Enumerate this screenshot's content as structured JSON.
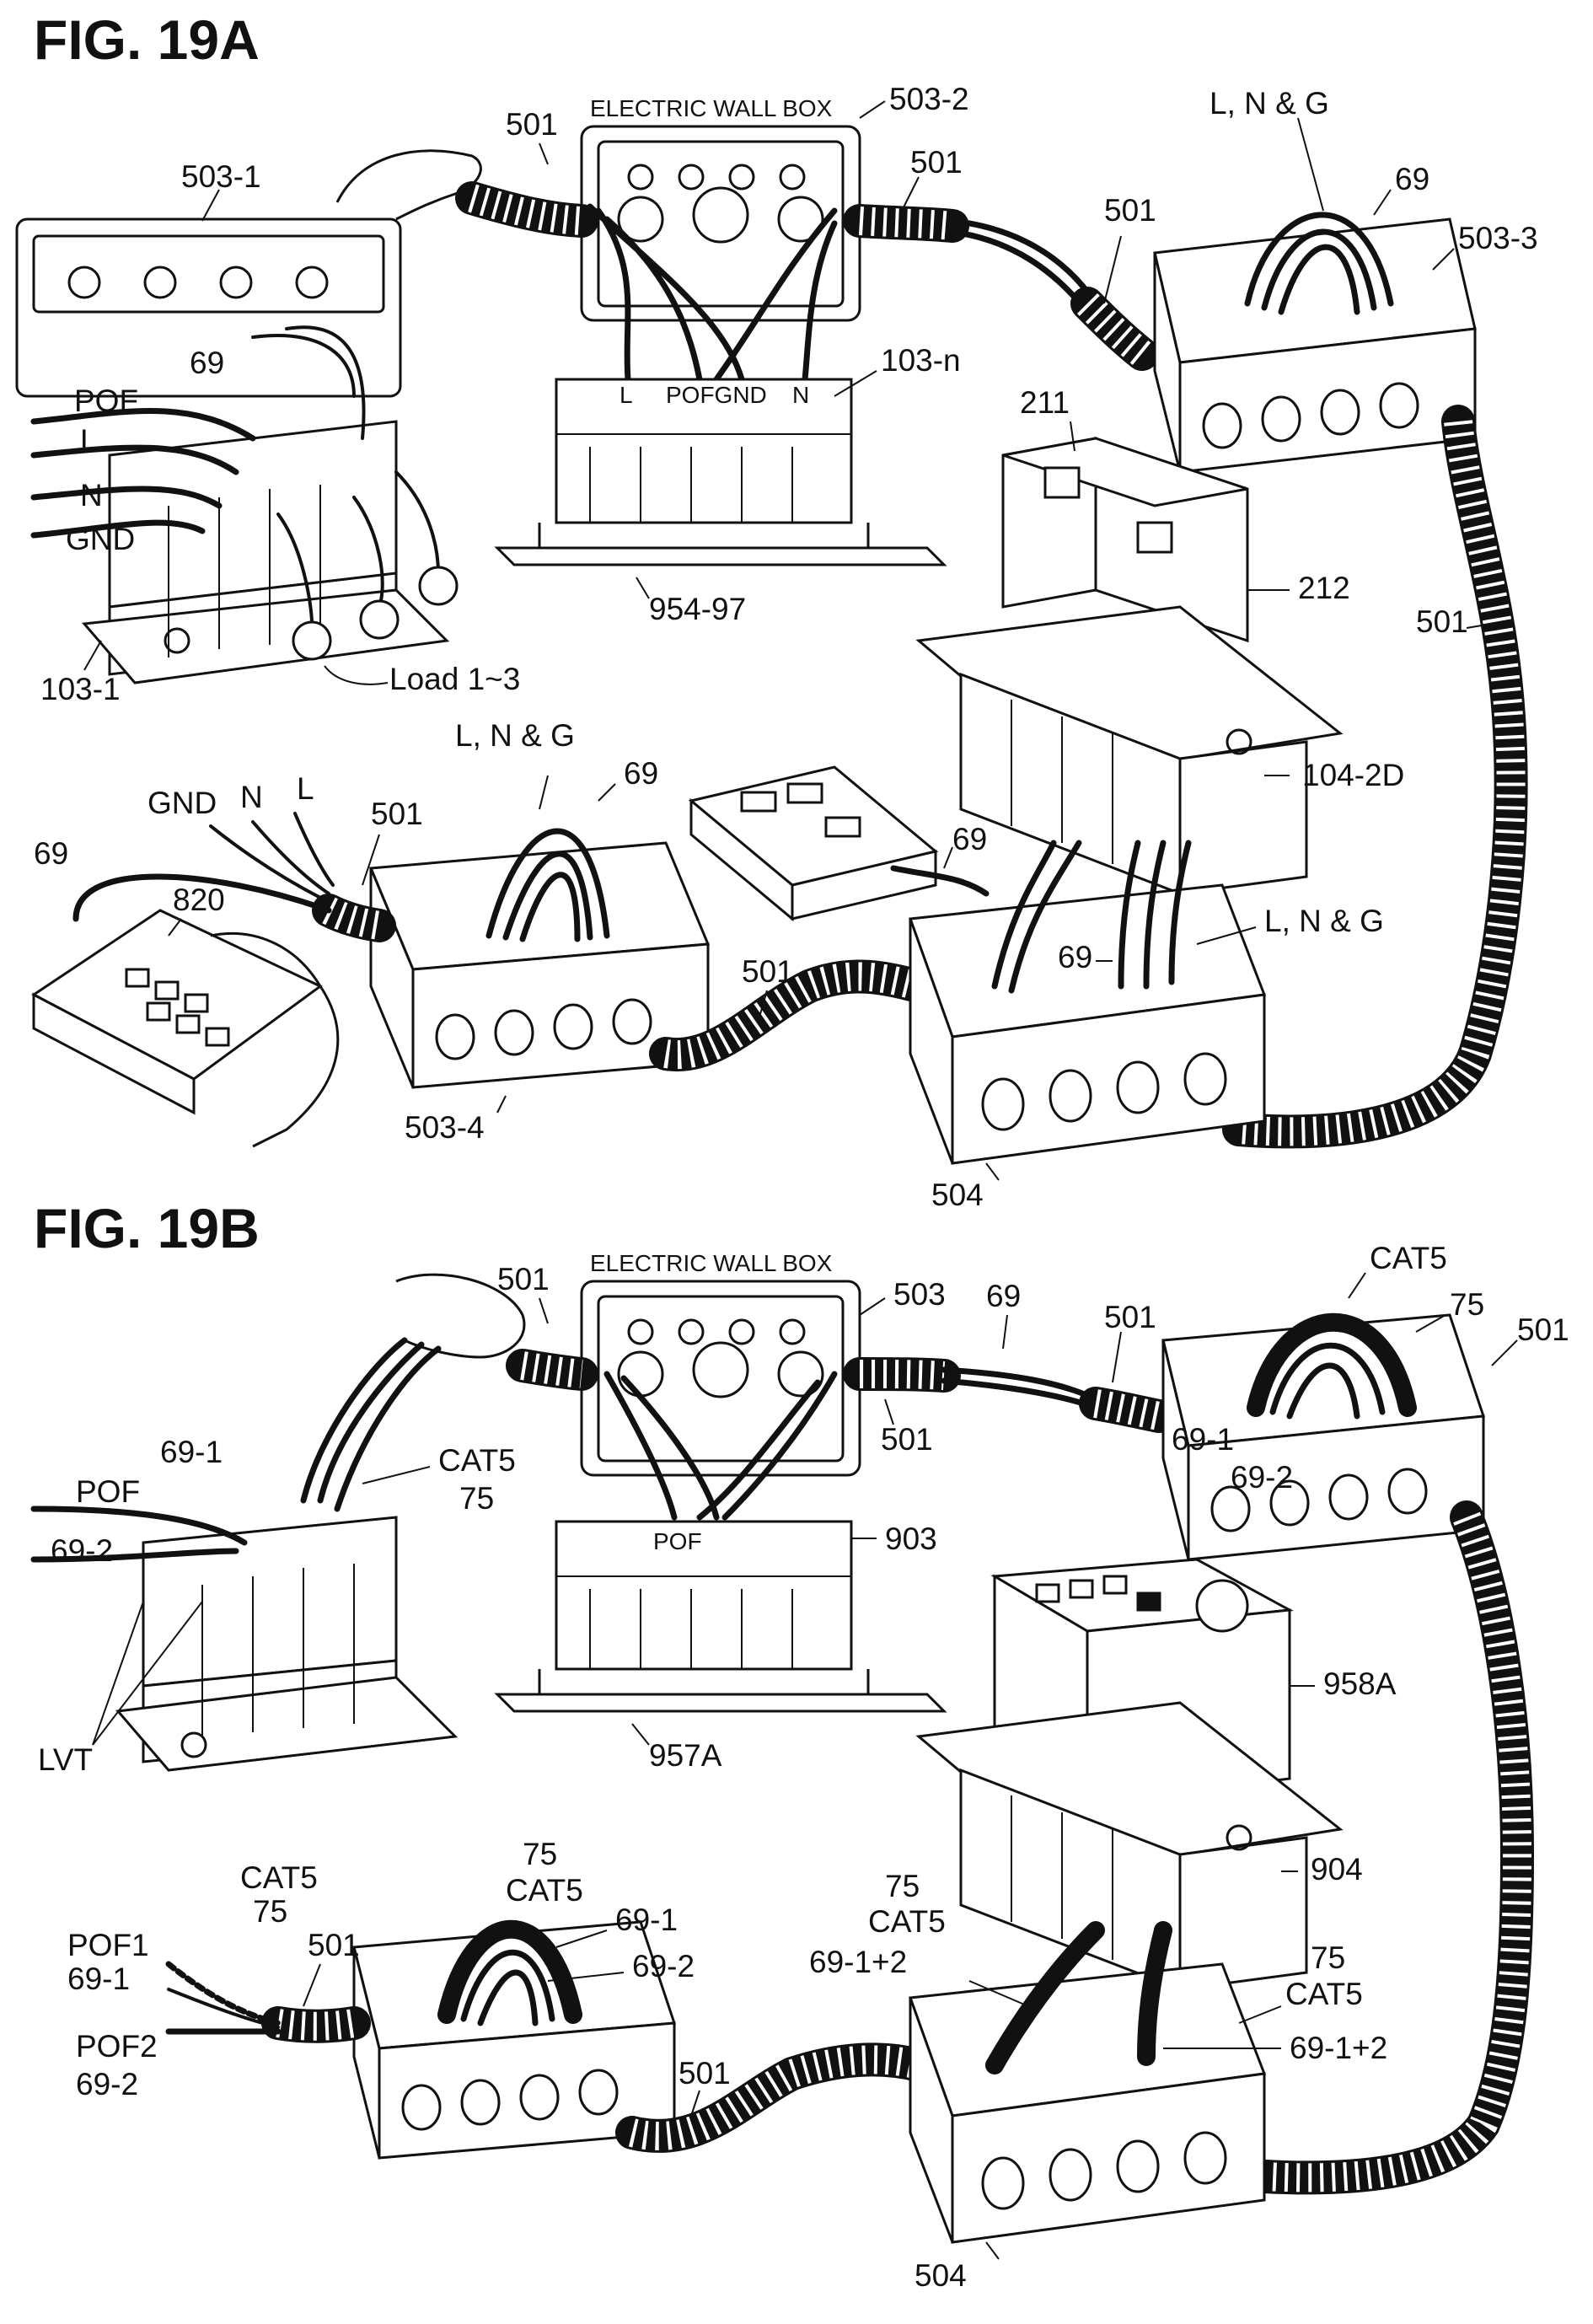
{
  "figures": [
    {
      "title": "FIG. 19A",
      "wall_box_caption": "ELECTRIC WALL BOX",
      "labels": {
        "l501_a": "501",
        "l503_2": "503-2",
        "l501_b": "501",
        "l503_1": "503-1",
        "lLNG_top": "L, N & G",
        "l69_top": "69",
        "l501_c": "501",
        "l503_3": "503-3",
        "l69_left": "69",
        "lPOF": "POF",
        "lL": "L",
        "lN": "N",
        "lGND": "GND",
        "l103_n": "103-n",
        "term_L": "L",
        "term_POFGND": "POFGND",
        "term_N": "N",
        "l211": "211",
        "l212": "212",
        "l501_d": "501",
        "l103_1": "103-1",
        "lLoad": "Load 1~3",
        "l954_97": "954-97",
        "lLNG_mid": "L, N & G",
        "l69_mid": "69",
        "l104_2D": "104-2D",
        "lGND2": "GND",
        "lN2": "N",
        "lL2": "L",
        "l501_e": "501",
        "l69_remote": "69",
        "l820": "820",
        "l69_right": "69",
        "l69_box": "69",
        "lLNG_right": "L, N & G",
        "l501_f": "501",
        "l503_4": "503-4",
        "l504": "504"
      }
    },
    {
      "title": "FIG. 19B",
      "wall_box_caption": "ELECTRIC WALL BOX",
      "labels": {
        "l501_a": "501",
        "l503": "503",
        "l69": "69",
        "l501_b": "501",
        "lCAT5_top": "CAT5",
        "l75_top": "75",
        "l69_1_top": "69-1",
        "l69_2_top": "69-2",
        "l501_c": "501",
        "l501_right": "501",
        "lCAT5_mid": "CAT5",
        "l75_mid": "75",
        "l69_1_left": "69-1",
        "lPOF_left": "POF",
        "l69_2_left": "69-2",
        "lPOF_term": "POF",
        "l903": "903",
        "l958A": "958A",
        "lLVT": "LVT",
        "l957A": "957A",
        "l904": "904",
        "lCAT5_l": "CAT5",
        "l75_l": "75",
        "lPOF1": "POF1",
        "l69_1_l": "69-1",
        "l501_l": "501",
        "lPOF2": "POF2",
        "l69_2_l": "69-2",
        "l75_box": "75",
        "lCAT5_box": "CAT5",
        "l69_1_box": "69-1",
        "l69_2_box": "69-2",
        "l75_r1": "75",
        "lCAT5_r1": "CAT5",
        "l69_12_a": "69-1+2",
        "l75_r2": "75",
        "lCAT5_r2": "CAT5",
        "l69_12_b": "69-1+2",
        "l501_bot": "501",
        "l504": "504"
      }
    }
  ]
}
